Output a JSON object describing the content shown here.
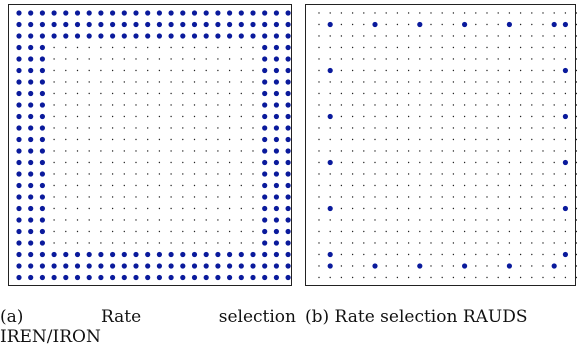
{
  "figure": {
    "panel_a": {
      "caption_label": "(a)",
      "caption_word1": "Rate",
      "caption_word2": "selection",
      "caption_line2": "IREN/IRON",
      "grid": {
        "cols": 24,
        "rows": 24
      },
      "selection": {
        "pattern": "border-band",
        "band_top": 3,
        "band_left": 3,
        "band_right": 3,
        "band_bottom": 3
      }
    },
    "panel_b": {
      "caption": "(b) Rate selection RAUDS",
      "grid": {
        "cols": 24,
        "rows": 24
      },
      "selection": {
        "pattern": "sparse-frame",
        "step": 4
      }
    },
    "colors": {
      "selected": "#0a1a9c",
      "unselected": "#222222",
      "frame": "#222222"
    }
  }
}
